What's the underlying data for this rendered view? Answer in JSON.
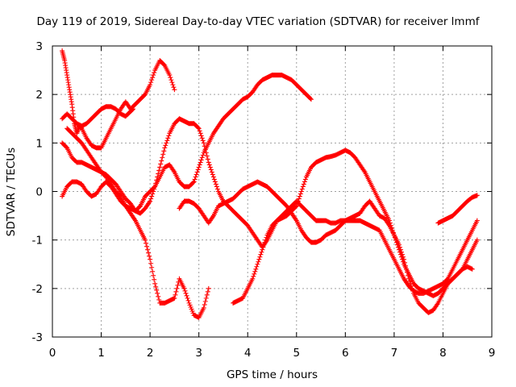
{
  "chart_data": {
    "type": "scatter",
    "title": "Day 119 of 2019, Sidereal Day-to-day VTEC variation (SDTVAR) for receiver lmmf",
    "xlabel": "GPS time / hours",
    "ylabel": "SDTVAR / TECUs",
    "xlim": [
      0,
      9
    ],
    "ylim": [
      -3,
      3
    ],
    "xticks": [
      "0",
      "1",
      "2",
      "3",
      "4",
      "5",
      "6",
      "7",
      "8",
      "9"
    ],
    "yticks": [
      "-3",
      "-2",
      "-1",
      "0",
      "1",
      "2",
      "3"
    ],
    "grid": true,
    "marker": "+",
    "color": "#ff0000",
    "series": [
      {
        "x": [
          0.2,
          0.25,
          0.3,
          0.35,
          0.4,
          0.45,
          0.5,
          0.55,
          0.6,
          0.7,
          0.8,
          0.9,
          1.0,
          1.1,
          1.2,
          1.3,
          1.4,
          1.5,
          1.6,
          1.7,
          1.8,
          1.9,
          2.0,
          2.1,
          2.2,
          2.3,
          2.4,
          2.5
        ],
        "y": [
          2.9,
          2.7,
          2.4,
          2.1,
          1.8,
          1.4,
          1.2,
          1.35,
          1.3,
          1.1,
          0.95,
          0.9,
          0.9,
          1.1,
          1.3,
          1.5,
          1.7,
          1.85,
          1.7,
          1.8,
          1.9,
          2.0,
          2.2,
          2.5,
          2.7,
          2.6,
          2.4,
          2.1
        ]
      },
      {
        "x": [
          0.2,
          0.3,
          0.4,
          0.5,
          0.6,
          0.7,
          0.8,
          0.9,
          1.0,
          1.1,
          1.2,
          1.3,
          1.4,
          1.5,
          1.6,
          1.65
        ],
        "y": [
          1.5,
          1.6,
          1.5,
          1.4,
          1.35,
          1.4,
          1.5,
          1.6,
          1.7,
          1.75,
          1.75,
          1.7,
          1.6,
          1.55,
          1.65,
          1.7
        ]
      },
      {
        "x": [
          0.2,
          0.3,
          0.4,
          0.5,
          0.6,
          0.7,
          0.8,
          0.9,
          1.0,
          1.1,
          1.2,
          1.3,
          1.4,
          1.5,
          1.6,
          1.7,
          1.8,
          1.9,
          2.0,
          2.1,
          2.2,
          2.3,
          2.4,
          2.5,
          2.6,
          2.7,
          2.8,
          2.9,
          3.0,
          3.1,
          3.2
        ],
        "y": [
          1.0,
          0.9,
          0.7,
          0.6,
          0.6,
          0.55,
          0.5,
          0.45,
          0.4,
          0.3,
          0.15,
          0.0,
          -0.1,
          -0.3,
          -0.45,
          -0.6,
          -0.8,
          -1.0,
          -1.4,
          -1.9,
          -2.3,
          -2.3,
          -2.25,
          -2.2,
          -1.8,
          -2.0,
          -2.3,
          -2.55,
          -2.6,
          -2.4,
          -2.0
        ]
      },
      {
        "x": [
          0.2,
          0.3,
          0.4,
          0.5,
          0.6,
          0.7,
          0.8,
          0.9,
          1.0,
          1.1,
          1.2,
          1.3,
          1.4,
          1.5,
          1.6,
          1.7,
          1.8,
          1.9,
          2.0,
          2.1,
          2.2,
          2.3,
          2.4,
          2.5,
          2.6,
          2.7,
          2.8,
          2.9,
          3.0,
          3.1,
          3.2,
          3.3,
          3.4,
          3.5,
          3.6,
          3.7,
          3.8,
          3.9,
          4.0,
          4.1,
          4.2,
          4.3,
          4.4,
          4.5,
          4.6,
          4.7,
          4.8,
          4.9,
          5.0,
          5.1,
          5.2,
          5.3
        ],
        "y": [
          -0.1,
          0.1,
          0.2,
          0.2,
          0.15,
          0.0,
          -0.1,
          -0.05,
          0.1,
          0.2,
          0.1,
          -0.05,
          -0.2,
          -0.3,
          -0.35,
          -0.4,
          -0.3,
          -0.1,
          0.0,
          0.1,
          0.3,
          0.5,
          0.55,
          0.4,
          0.2,
          0.1,
          0.1,
          0.2,
          0.5,
          0.8,
          1.0,
          1.2,
          1.35,
          1.5,
          1.6,
          1.7,
          1.8,
          1.9,
          1.95,
          2.05,
          2.2,
          2.3,
          2.35,
          2.4,
          2.4,
          2.4,
          2.35,
          2.3,
          2.2,
          2.1,
          2.0,
          1.9
        ]
      },
      {
        "x": [
          0.3,
          0.4,
          0.5,
          0.6,
          0.7,
          0.8,
          0.9,
          1.0,
          1.1,
          1.2,
          1.3,
          1.4,
          1.5,
          1.6,
          1.7,
          1.8,
          1.9,
          2.0,
          2.1,
          2.2,
          2.3,
          2.4,
          2.5,
          2.6,
          2.7,
          2.8,
          2.9,
          3.0,
          3.1,
          3.2,
          3.3,
          3.4,
          3.5,
          3.6,
          3.7,
          3.8,
          3.9,
          4.0,
          4.1,
          4.2,
          4.3,
          4.4,
          4.5,
          4.6,
          4.7,
          4.8,
          4.9,
          5.0,
          5.1,
          5.2,
          5.3,
          5.4,
          5.5,
          5.6,
          5.7,
          5.8,
          5.9,
          6.0,
          6.1,
          6.2,
          6.3,
          6.4,
          6.5,
          6.6,
          6.7,
          6.8,
          6.9,
          7.0,
          7.1,
          7.2,
          7.3,
          7.4,
          7.5,
          7.6,
          7.7,
          7.8,
          7.9,
          8.0,
          8.1,
          8.2,
          8.3,
          8.4,
          8.5,
          8.6,
          8.7
        ],
        "y": [
          1.3,
          1.2,
          1.1,
          1.0,
          0.85,
          0.7,
          0.55,
          0.4,
          0.35,
          0.25,
          0.15,
          0.0,
          -0.15,
          -0.25,
          -0.4,
          -0.45,
          -0.35,
          -0.2,
          0.1,
          0.5,
          0.9,
          1.2,
          1.4,
          1.5,
          1.45,
          1.4,
          1.4,
          1.3,
          1.0,
          0.6,
          0.3,
          0.0,
          -0.2,
          -0.3,
          -0.4,
          -0.5,
          -0.6,
          -0.7,
          -0.85,
          -1.0,
          -1.15,
          -1.0,
          -0.8,
          -0.6,
          -0.5,
          -0.4,
          -0.3,
          -0.2,
          -0.3,
          -0.4,
          -0.5,
          -0.6,
          -0.6,
          -0.6,
          -0.65,
          -0.65,
          -0.6,
          -0.6,
          -0.6,
          -0.6,
          -0.6,
          -0.65,
          -0.7,
          -0.75,
          -0.8,
          -1.0,
          -1.2,
          -1.4,
          -1.6,
          -1.8,
          -1.95,
          -2.05,
          -2.1,
          -2.1,
          -2.05,
          -2.0,
          -1.95,
          -1.9,
          -1.8,
          -1.6,
          -1.4,
          -1.2,
          -1.0,
          -0.8,
          -0.6
        ]
      },
      {
        "x": [
          2.6,
          2.7,
          2.8,
          2.9,
          3.0,
          3.1,
          3.2,
          3.3,
          3.4,
          3.5,
          3.6,
          3.7,
          3.8,
          3.9,
          4.0,
          4.1,
          4.2,
          4.3,
          4.4,
          4.5,
          4.6,
          4.7,
          4.8,
          4.9,
          5.0,
          5.1,
          5.2,
          5.3,
          5.4,
          5.5,
          5.6,
          5.7,
          5.8,
          5.9,
          6.0,
          6.1,
          6.2,
          6.3,
          6.4,
          6.5,
          6.6,
          6.7,
          6.8,
          6.9,
          7.0,
          7.1,
          7.2,
          7.3,
          7.4,
          7.5,
          7.6,
          7.7,
          7.8,
          7.9,
          8.0,
          8.1,
          8.2,
          8.3,
          8.4,
          8.5,
          8.6,
          8.7
        ],
        "y": [
          -0.35,
          -0.2,
          -0.2,
          -0.25,
          -0.35,
          -0.5,
          -0.65,
          -0.5,
          -0.3,
          -0.25,
          -0.2,
          -0.15,
          -0.05,
          0.05,
          0.1,
          0.15,
          0.2,
          0.15,
          0.1,
          0.0,
          -0.1,
          -0.2,
          -0.3,
          -0.45,
          -0.6,
          -0.8,
          -0.95,
          -1.05,
          -1.05,
          -1.0,
          -0.9,
          -0.85,
          -0.8,
          -0.7,
          -0.6,
          -0.55,
          -0.5,
          -0.45,
          -0.3,
          -0.2,
          -0.35,
          -0.5,
          -0.55,
          -0.7,
          -0.9,
          -1.1,
          -1.4,
          -1.8,
          -2.1,
          -2.3,
          -2.4,
          -2.5,
          -2.45,
          -2.3,
          -2.1,
          -1.9,
          -1.8,
          -1.7,
          -1.6,
          -1.4,
          -1.2,
          -1.0
        ]
      },
      {
        "x": [
          3.7,
          3.8,
          3.9,
          4.0,
          4.1,
          4.2,
          4.3,
          4.4,
          4.5,
          4.6,
          4.7,
          4.8,
          4.9,
          5.0,
          5.1,
          5.2,
          5.3,
          5.4,
          5.5,
          5.6,
          5.7,
          5.8,
          5.9,
          6.0,
          6.1,
          6.2,
          6.3,
          6.4,
          6.5,
          6.6,
          6.7,
          6.8,
          6.9,
          7.0,
          7.1,
          7.2,
          7.3,
          7.4,
          7.5,
          7.6,
          7.7,
          7.8,
          7.9,
          8.0,
          8.1,
          8.2,
          8.3,
          8.4,
          8.5,
          8.6
        ],
        "y": [
          -2.3,
          -2.25,
          -2.2,
          -2.0,
          -1.8,
          -1.5,
          -1.2,
          -0.9,
          -0.7,
          -0.6,
          -0.55,
          -0.5,
          -0.4,
          -0.3,
          0.0,
          0.3,
          0.5,
          0.6,
          0.65,
          0.7,
          0.72,
          0.75,
          0.8,
          0.85,
          0.8,
          0.7,
          0.55,
          0.4,
          0.2,
          0.0,
          -0.2,
          -0.4,
          -0.6,
          -0.9,
          -1.2,
          -1.5,
          -1.7,
          -1.9,
          -2.0,
          -2.05,
          -2.1,
          -2.15,
          -2.1,
          -2.0,
          -1.9,
          -1.8,
          -1.7,
          -1.6,
          -1.55,
          -1.6
        ]
      },
      {
        "x": [
          7.9,
          8.0,
          8.1,
          8.2,
          8.3,
          8.4,
          8.5,
          8.6,
          8.7
        ],
        "y": [
          -0.65,
          -0.6,
          -0.55,
          -0.5,
          -0.4,
          -0.3,
          -0.2,
          -0.12,
          -0.08
        ]
      }
    ]
  }
}
